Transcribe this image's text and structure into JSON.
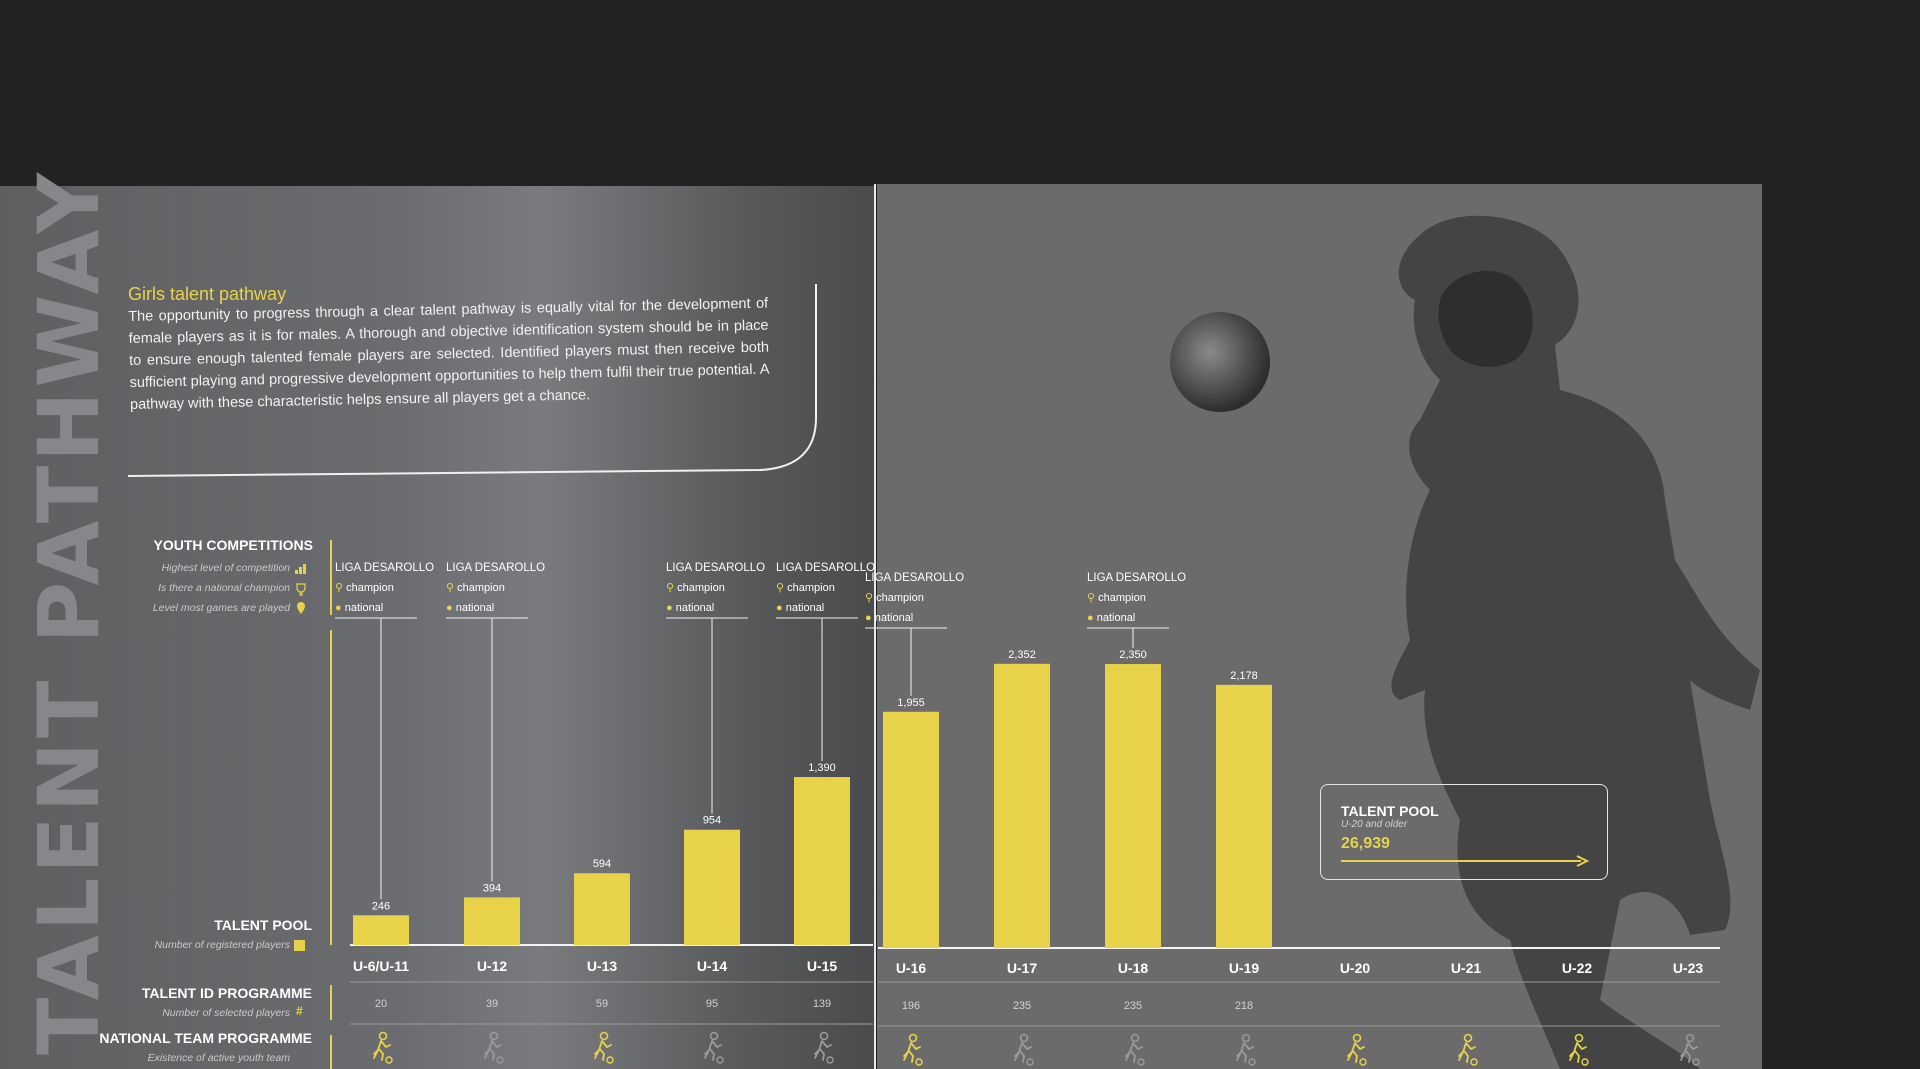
{
  "vertical_title": "TALENT PATHWAY",
  "intro": {
    "title": "Girls talent pathway",
    "body": "The opportunity to progress through a clear talent pathway is equally vital for the development of female players as it is for males. A thorough and objective identification system should be in place to ensure enough talented female players are selected. Identified players must then receive both sufficient playing and progressive development opportunities to help them fulfil their true potential. A pathway with these characteristic helps ensure all players get a chance."
  },
  "rows": {
    "youth_competitions": {
      "label": "YOUTH COMPETITIONS",
      "sub1": "Highest level of competition",
      "sub2": "Is there a national champion",
      "sub3": "Level most games are played"
    },
    "talent_pool": {
      "label": "TALENT POOL",
      "sub": "Number of registered players"
    },
    "talent_id": {
      "label": "TALENT ID PROGRAMME",
      "sub": "Number of selected players"
    },
    "national_team": {
      "label": "NATIONAL TEAM PROGRAMME",
      "sub": "Existence of active youth team"
    }
  },
  "competition": {
    "name": "LIGA DESAROLLO",
    "champion": "champion",
    "level": "national"
  },
  "talent_pool_box": {
    "title": "TALENT POOL",
    "sub": "U-20 and older",
    "value": "26,939"
  },
  "colors": {
    "accent": "#e8d24a",
    "page": "#6b6b6b",
    "background": "#222222",
    "inactive_icon": "#9a9a9a"
  },
  "chart_data": {
    "type": "bar",
    "categories": [
      "U-6/U-11",
      "U-12",
      "U-13",
      "U-14",
      "U-15",
      "U-16",
      "U-17",
      "U-18",
      "U-19",
      "U-20",
      "U-21",
      "U-22",
      "U-23"
    ],
    "series": [
      {
        "name": "TALENT POOL",
        "values": [
          246,
          394,
          594,
          954,
          1390,
          1955,
          2352,
          2350,
          2178,
          null,
          null,
          null,
          null
        ],
        "labels": [
          "246",
          "394",
          "594",
          "954",
          "1,390",
          "1,955",
          "2,352",
          "2,350",
          "2,178",
          "",
          "",
          "",
          ""
        ]
      }
    ],
    "talent_id_values": [
      "20",
      "39",
      "59",
      "95",
      "139",
      "196",
      "235",
      "235",
      "218",
      "",
      "",
      "",
      ""
    ],
    "competition_flags": [
      true,
      true,
      false,
      true,
      true,
      true,
      false,
      true,
      false,
      false,
      false,
      false,
      false
    ],
    "national_team_active": [
      true,
      false,
      true,
      false,
      false,
      true,
      false,
      false,
      false,
      true,
      true,
      true,
      false
    ],
    "ylim": [
      0,
      2400
    ]
  }
}
